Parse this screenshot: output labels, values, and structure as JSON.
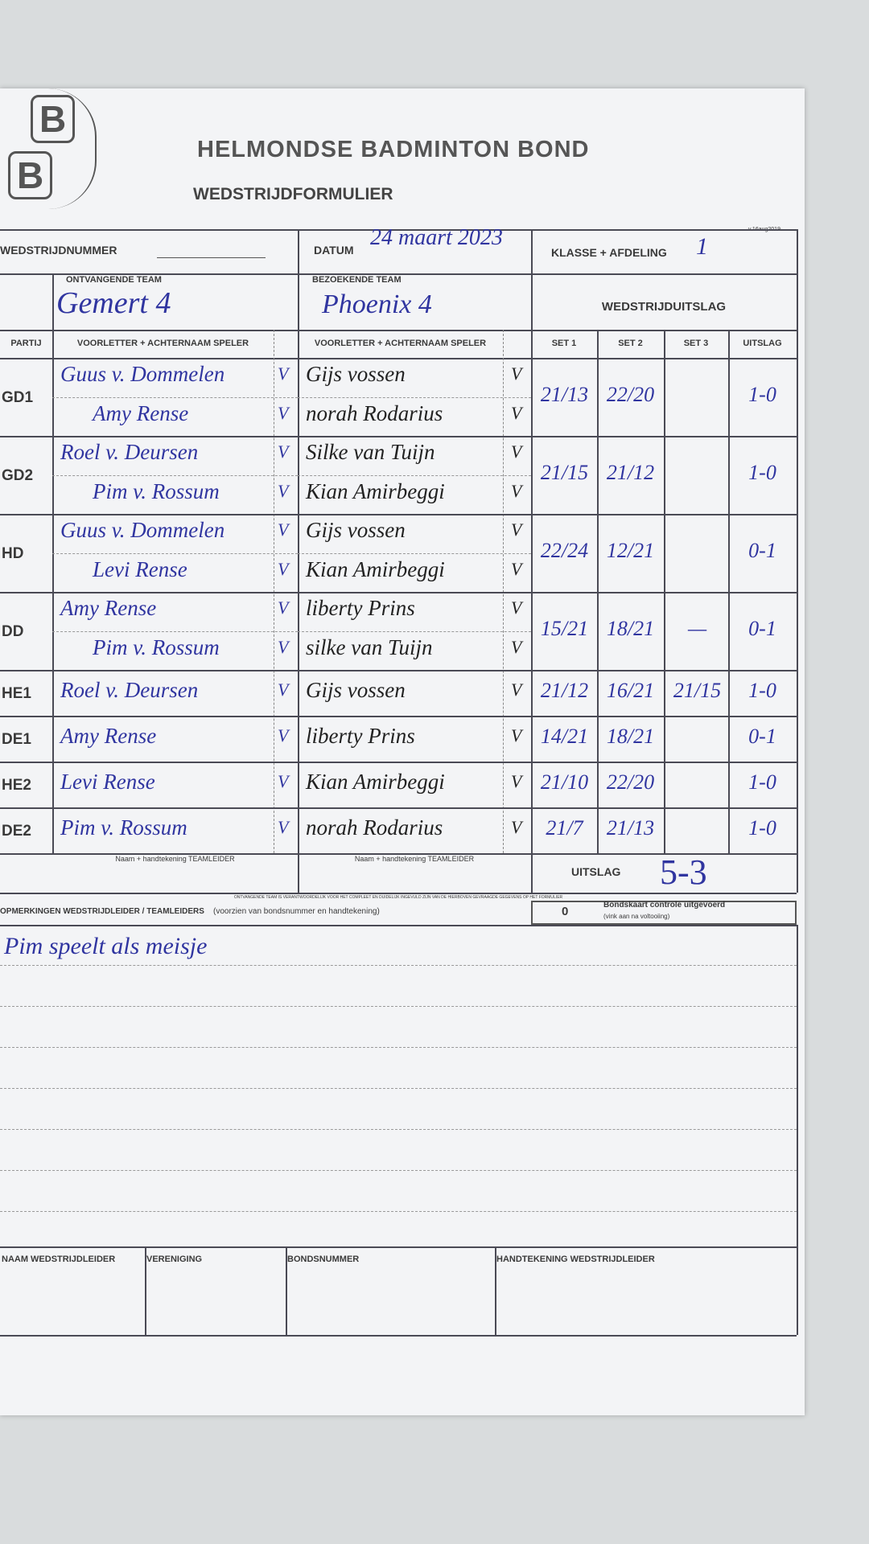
{
  "header": {
    "logo": [
      "B",
      "B"
    ],
    "title": "HELMONDSE BADMINTON BOND",
    "subtitle": "WEDSTRIJDFORMULIER",
    "version": "v.16aug2019"
  },
  "info": {
    "match_number_label": "WEDSTRIJDNUMMER",
    "date_label": "DATUM",
    "date": "24 maart 2023",
    "class_label": "KLASSE + AFDELING",
    "class": "1"
  },
  "teams": {
    "home_label": "ONTVANGENDE TEAM",
    "home": "Gemert 4",
    "away_label": "BEZOEKENDE TEAM",
    "away": "Phoenix 4",
    "result_label": "WEDSTRIJDUITSLAG"
  },
  "columns": [
    "PARTIJ",
    "VOORLETTER + ACHTERNAAM SPELER",
    "VOORLETTER + ACHTERNAAM SPELER",
    "SET 1",
    "SET 2",
    "SET 3",
    "UITSLAG"
  ],
  "matches": [
    {
      "code": "GD1",
      "home": [
        {
          "name": "Guus v. Dommelen",
          "check": "V"
        },
        {
          "name": "Amy Rense",
          "check": "V"
        }
      ],
      "away": [
        {
          "name": "Gijs vossen",
          "check": "V"
        },
        {
          "name": "norah Rodarius",
          "check": "V"
        }
      ],
      "sets": [
        "21/13",
        "22/20"
      ],
      "result": "1-0"
    },
    {
      "code": "GD2",
      "home": [
        {
          "name": "Roel v. Deursen",
          "check": "V"
        },
        {
          "name": "Pim v. Rossum",
          "check": "V"
        }
      ],
      "away": [
        {
          "name": "Silke van Tuijn",
          "check": "V"
        },
        {
          "name": "Kian Amirbeggi",
          "check": "V"
        }
      ],
      "sets": [
        "21/15",
        "21/12"
      ],
      "result": "1-0"
    },
    {
      "code": "HD",
      "home": [
        {
          "name": "Guus v. Dommelen",
          "check": "V"
        },
        {
          "name": "Levi Rense",
          "check": "V"
        }
      ],
      "away": [
        {
          "name": "Gijs vossen",
          "check": "V"
        },
        {
          "name": "Kian Amirbeggi",
          "check": "V"
        }
      ],
      "sets": [
        "22/24",
        "12/21"
      ],
      "result": "0-1"
    },
    {
      "code": "DD",
      "home": [
        {
          "name": "Amy Rense",
          "check": "V"
        },
        {
          "name": "Pim v. Rossum",
          "check": "V"
        }
      ],
      "away": [
        {
          "name": "liberty Prins",
          "check": "V"
        },
        {
          "name": "silke van Tuijn",
          "check": "V"
        }
      ],
      "sets": [
        "15/21",
        "18/21",
        "—"
      ],
      "result": "0-1"
    },
    {
      "code": "HE1",
      "home": [
        {
          "name": "Roel v. Deursen",
          "check": "V"
        }
      ],
      "away": [
        {
          "name": "Gijs vossen",
          "check": "V"
        }
      ],
      "sets": [
        "21/12",
        "16/21",
        "21/15"
      ],
      "result": "1-0"
    },
    {
      "code": "DE1",
      "home": [
        {
          "name": "Amy Rense",
          "check": "V"
        }
      ],
      "away": [
        {
          "name": "liberty Prins",
          "check": "V"
        }
      ],
      "sets": [
        "14/21",
        "18/21"
      ],
      "result": "0-1"
    },
    {
      "code": "HE2",
      "home": [
        {
          "name": "Levi Rense",
          "check": "V"
        }
      ],
      "away": [
        {
          "name": "Kian Amirbeggi",
          "check": "V"
        }
      ],
      "sets": [
        "21/10",
        "22/20"
      ],
      "result": "1-0"
    },
    {
      "code": "DE2",
      "home": [
        {
          "name": "Pim v. Rossum",
          "check": "V"
        }
      ],
      "away": [
        {
          "name": "norah Rodarius",
          "check": "V"
        }
      ],
      "sets": [
        "21/7",
        "21/13"
      ],
      "result": "1-0"
    }
  ],
  "footer": {
    "leader_labels": [
      "Naam + handtekening TEAMLEIDER",
      "Naam + handtekening TEAMLEIDER"
    ],
    "final_label": "UITSLAG",
    "final": "5-3",
    "disclaimer": "ONTVANGENDE TEAM IS VERANTWOORDELIJK VOOR HET COMPLEET EN DUIDELIJK INGEVULD ZIJN VAN DE HIERBOVEN GEVRAAGDE GEGEVENS OP HET FORMULIER",
    "remarks_label": "OPMERKINGEN WEDSTRIJDLEIDER / TEAMLEIDERS",
    "remarks_note": "(voorzien van bondsnummer en handtekening)",
    "check_box": "0",
    "check_label": "Bondskaart controle uitgevoerd",
    "check_note": "(vink aan na voltooiing)",
    "remarks": "Pim speelt als meisje"
  },
  "signoff": [
    "NAAM WEDSTRIJDLEIDER",
    "VERENIGING",
    "BONDSNUMMER",
    "HANDTEKENING WEDSTRIJDLEIDER"
  ]
}
